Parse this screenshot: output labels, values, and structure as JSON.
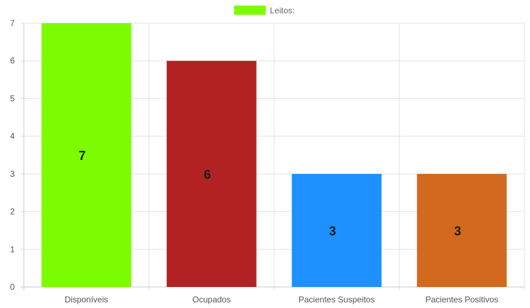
{
  "chart_data": {
    "type": "bar",
    "legend": {
      "label": "Leitos:",
      "color": "#7cfc00",
      "position": "top-center"
    },
    "categories": [
      "Disponíveis",
      "Ocupados",
      "Pacientes Suspeitos",
      "Pacientes Positivos"
    ],
    "series": [
      {
        "name": "Leitos:",
        "values": [
          7,
          6,
          3,
          3
        ],
        "colors": [
          "#7cfc00",
          "#b22222",
          "#1e90ff",
          "#d2691e"
        ]
      }
    ],
    "data_labels": [
      "7",
      "6",
      "3",
      "3"
    ],
    "y_ticks": [
      "0",
      "1",
      "2",
      "3",
      "4",
      "5",
      "6",
      "7"
    ],
    "ylim": [
      0,
      7
    ],
    "grid": true
  }
}
